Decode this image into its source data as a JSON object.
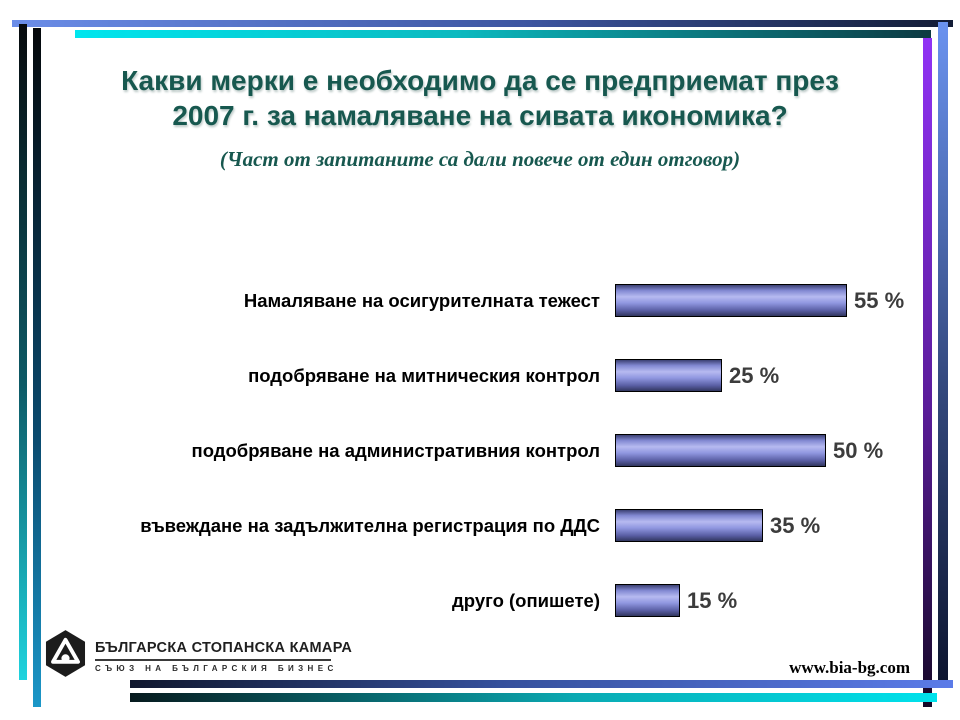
{
  "slide": {
    "title_line1": "Какви мерки е необходимо да се предприемат през",
    "title_line2": "2007 г. за намаляване на сивата икономика?",
    "subtitle": "(Част от запитаните са дали повече от един отговор)",
    "title_color": "#17584f"
  },
  "chart_data": {
    "type": "bar",
    "orientation": "horizontal",
    "title": "Какви мерки е необходимо да се предприемат през 2007 г. за намаляване на сивата икономика?",
    "subtitle": "(Част от запитаните са дали повече от един отговор)",
    "categories": [
      "Намаляване на осигурителната тежест",
      "подобряване на митническия контрол",
      "подобряване на административния контрол",
      "въвеждане на задължителна регистрация по ДДС",
      "друго (опишете)"
    ],
    "values": [
      55,
      25,
      50,
      35,
      15
    ],
    "value_labels": [
      "55 %",
      "25 %",
      "50 %",
      "35 %",
      "15 %"
    ],
    "unit": "%",
    "xlim": [
      0,
      60
    ],
    "grid": false,
    "legend": false,
    "bar_color": "#8a90dc",
    "bar_border_color": "#000000",
    "value_label_color": "#3c3c3c"
  },
  "footer": {
    "logo_icon": "bia-hexagon-logo",
    "logo_title": "БЪЛГАРСКА СТОПАНСКА КАМАРА",
    "logo_subtitle": "СЪЮЗ НА БЪЛГАРСКИЯ БИЗНЕС",
    "website": "www.bia-bg.com"
  },
  "frame_colors": {
    "blue": "#5b7be8",
    "cyan": "#00e2ec",
    "purple": "#9032f5",
    "dark_navy": "#10172e",
    "dark_teal": "#0c3a42"
  }
}
